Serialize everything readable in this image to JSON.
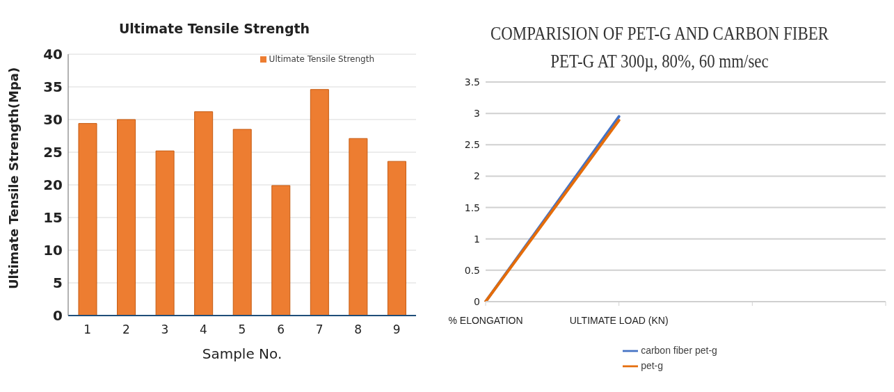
{
  "chart_data": [
    {
      "type": "bar",
      "title": "Ultimate Tensile Strength",
      "xlabel": "Sample No.",
      "ylabel": "Ultimate Tensile Strength(Mpa)",
      "categories": [
        "1",
        "2",
        "3",
        "4",
        "5",
        "6",
        "7",
        "8",
        "9"
      ],
      "series": [
        {
          "name": "Ultimate Tensile Strength",
          "color": "#ed7d31",
          "values": [
            29.4,
            30,
            25.2,
            31.2,
            28.5,
            19.9,
            34.6,
            27.1,
            23.6
          ]
        }
      ],
      "ylim": [
        0,
        40
      ],
      "yticks": [
        0,
        5,
        10,
        15,
        20,
        25,
        30,
        35,
        40
      ],
      "grid": "y",
      "legend": "top right"
    },
    {
      "type": "line",
      "title": "COMPARISION OF PET-G AND CARBON FIBER",
      "subtitle": "PET-G AT 300µ, 80%, 60 mm/sec",
      "categories": [
        "% ELONGATION",
        "ULTIMATE LOAD (KN)",
        null,
        null
      ],
      "series": [
        {
          "name": "carbon fiber pet-g",
          "color": "#4472c4",
          "values": [
            0,
            2.95,
            null,
            null
          ]
        },
        {
          "name": "pet-g",
          "color": "#e46c0a",
          "values": [
            0,
            2.89,
            null,
            null
          ]
        }
      ],
      "ylim": [
        0,
        3.5
      ],
      "yticks": [
        0,
        0.5,
        1,
        1.5,
        2,
        2.5,
        3,
        3.5
      ],
      "grid": "y",
      "legend": "bottom",
      "marker": "none"
    }
  ]
}
